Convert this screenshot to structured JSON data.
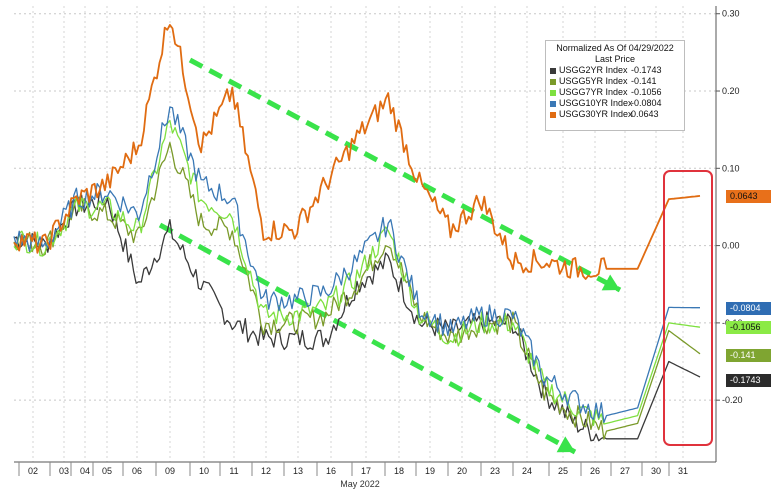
{
  "chart_data": {
    "type": "line",
    "xlabel": "May 2022",
    "x_ticks": [
      "02",
      "03",
      "04",
      "05",
      "06",
      "09",
      "10",
      "11",
      "12",
      "13",
      "16",
      "17",
      "18",
      "19",
      "20",
      "23",
      "24",
      "25",
      "26",
      "27",
      "30",
      "31"
    ],
    "y_ticks": [
      "0.30",
      "0.20",
      "0.10",
      "0.00",
      "-0.10",
      "-0.20"
    ],
    "ylim": [
      -0.28,
      0.31
    ],
    "grid": true,
    "legend": {
      "position": "top-right",
      "title": "Normalized As Of 04/29/2022",
      "subtitle": "Last Price"
    },
    "series": [
      {
        "name": "USGG2YR Index",
        "last": "-0.1743",
        "color": "#3a3a3a",
        "tag_color": "#2b2b2b",
        "tag_text_color": "#ffffff",
        "values": [
          0.01,
          0.0,
          0.05,
          0.06,
          -0.05,
          0.02,
          -0.05,
          -0.1,
          -0.12,
          -0.12,
          -0.12,
          -0.05,
          -0.02,
          -0.1,
          -0.11,
          -0.1,
          -0.1,
          -0.19,
          -0.23,
          -0.25,
          -0.25,
          -0.15,
          -0.17
        ]
      },
      {
        "name": "USGG5YR Index",
        "last": "-0.141",
        "color": "#7a9a2a",
        "tag_color": "#7fa531",
        "tag_text_color": "#ffffff",
        "values": [
          0.01,
          0.0,
          0.05,
          0.04,
          0.01,
          0.13,
          0.03,
          0.02,
          -0.1,
          -0.1,
          -0.09,
          -0.05,
          0.01,
          -0.09,
          -0.12,
          -0.1,
          -0.1,
          -0.19,
          -0.22,
          -0.24,
          -0.23,
          -0.11,
          -0.14
        ]
      },
      {
        "name": "USGG7YR Index",
        "last": "-0.1056",
        "color": "#7ee040",
        "tag_color": "#8bea46",
        "tag_text_color": "#111111",
        "values": [
          0.01,
          0.0,
          0.05,
          0.05,
          0.02,
          0.16,
          0.06,
          0.04,
          -0.09,
          -0.09,
          -0.08,
          -0.04,
          0.02,
          -0.09,
          -0.12,
          -0.1,
          -0.1,
          -0.18,
          -0.21,
          -0.23,
          -0.22,
          -0.1,
          -0.1056
        ]
      },
      {
        "name": "USGG10YR Index",
        "last": "-0.0804",
        "color": "#3a78b5",
        "tag_color": "#2f6db3",
        "tag_text_color": "#ffffff",
        "values": [
          0.01,
          0.0,
          0.06,
          0.07,
          0.04,
          0.18,
          0.08,
          0.06,
          -0.07,
          -0.07,
          -0.06,
          -0.02,
          0.03,
          -0.08,
          -0.11,
          -0.09,
          -0.09,
          -0.17,
          -0.2,
          -0.22,
          -0.21,
          -0.08,
          -0.0804
        ]
      },
      {
        "name": "USGG30YR Index",
        "last": "0.0643",
        "color": "#e06c12",
        "tag_color": "#e8701a",
        "tag_text_color": "#111111",
        "values": [
          0.01,
          0.0,
          0.06,
          0.08,
          0.13,
          0.3,
          0.13,
          0.2,
          0.02,
          0.02,
          0.08,
          0.14,
          0.19,
          0.08,
          0.02,
          0.06,
          -0.02,
          -0.02,
          -0.03,
          -0.03,
          -0.03,
          0.06,
          0.0643
        ]
      }
    ]
  }
}
